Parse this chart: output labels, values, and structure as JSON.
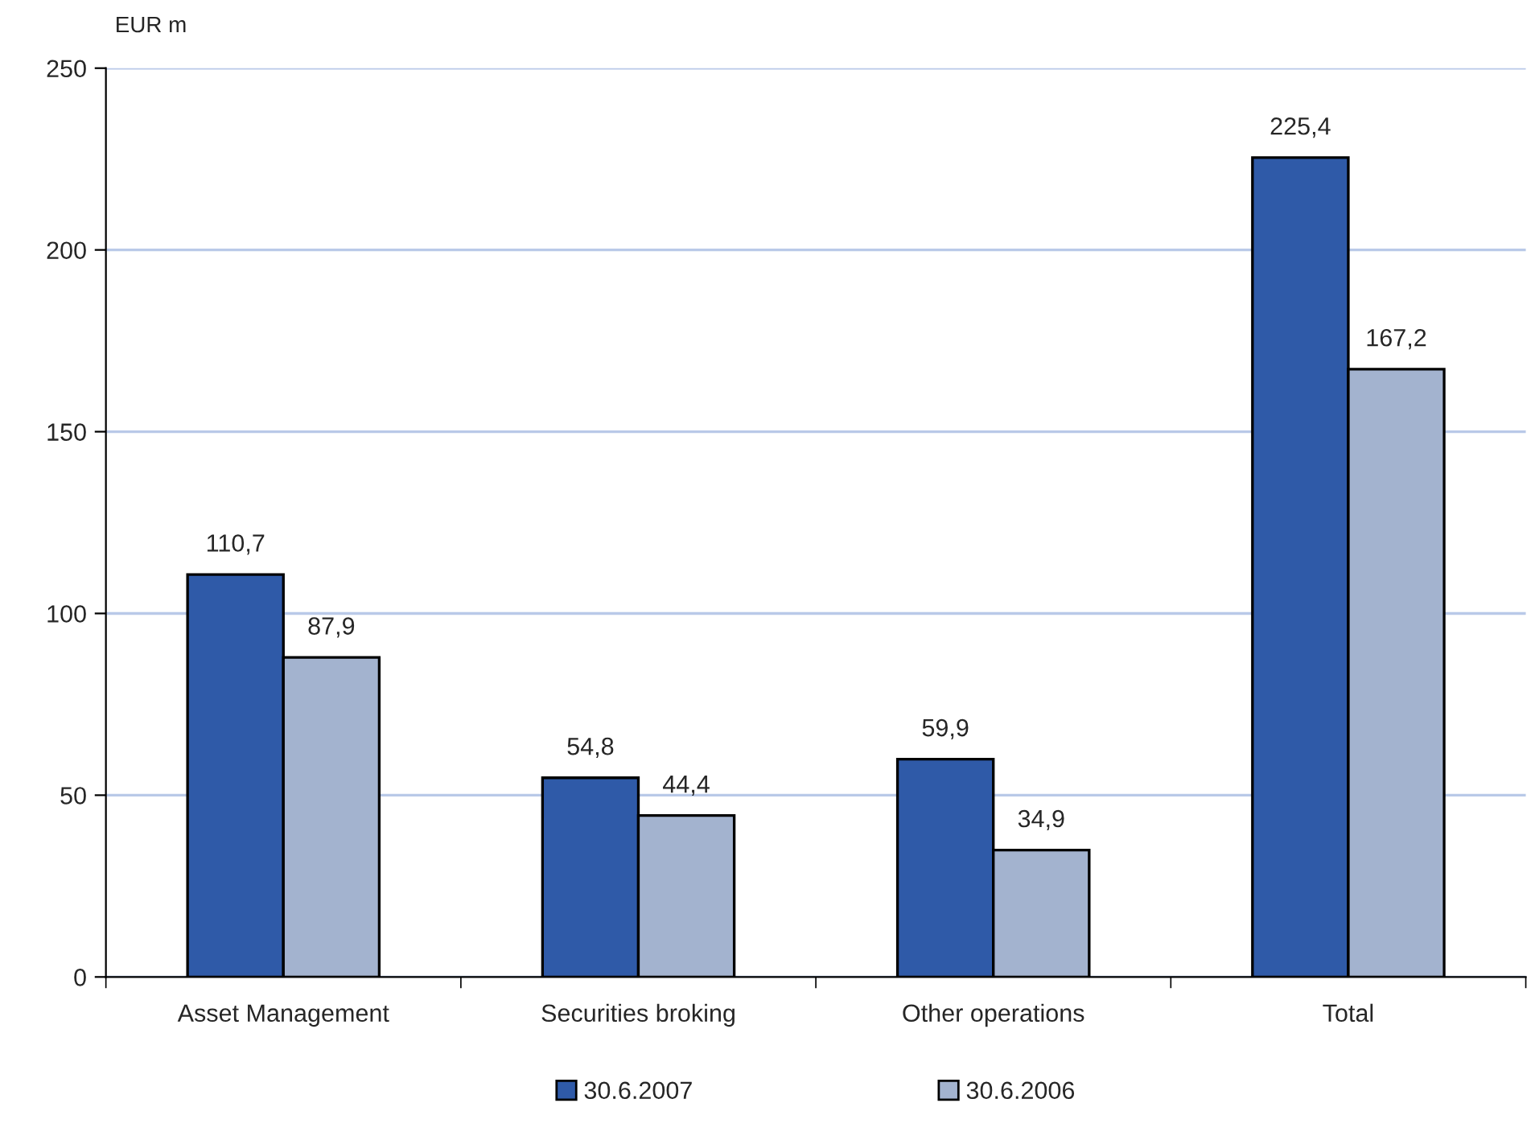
{
  "chart_data": {
    "type": "bar",
    "ylabel": "EUR m",
    "categories": [
      "Asset Management",
      "Securities broking",
      "Other operations",
      "Total"
    ],
    "series": [
      {
        "name": "30.6.2007",
        "color": "#2f5aa8",
        "values": [
          110.7,
          54.8,
          59.9,
          225.4
        ],
        "value_labels": [
          "110,7",
          "54,8",
          "59,9",
          "225,4"
        ]
      },
      {
        "name": "30.6.2006",
        "color": "#a3b3cf",
        "values": [
          87.9,
          44.4,
          34.9,
          167.2
        ],
        "value_labels": [
          "87,9",
          "44,4",
          "34,9",
          "167,2"
        ]
      }
    ],
    "ylim": [
      0,
      250
    ],
    "yticks": [
      0,
      50,
      100,
      150,
      200,
      250
    ],
    "grid": "y",
    "legend": "bottom"
  }
}
